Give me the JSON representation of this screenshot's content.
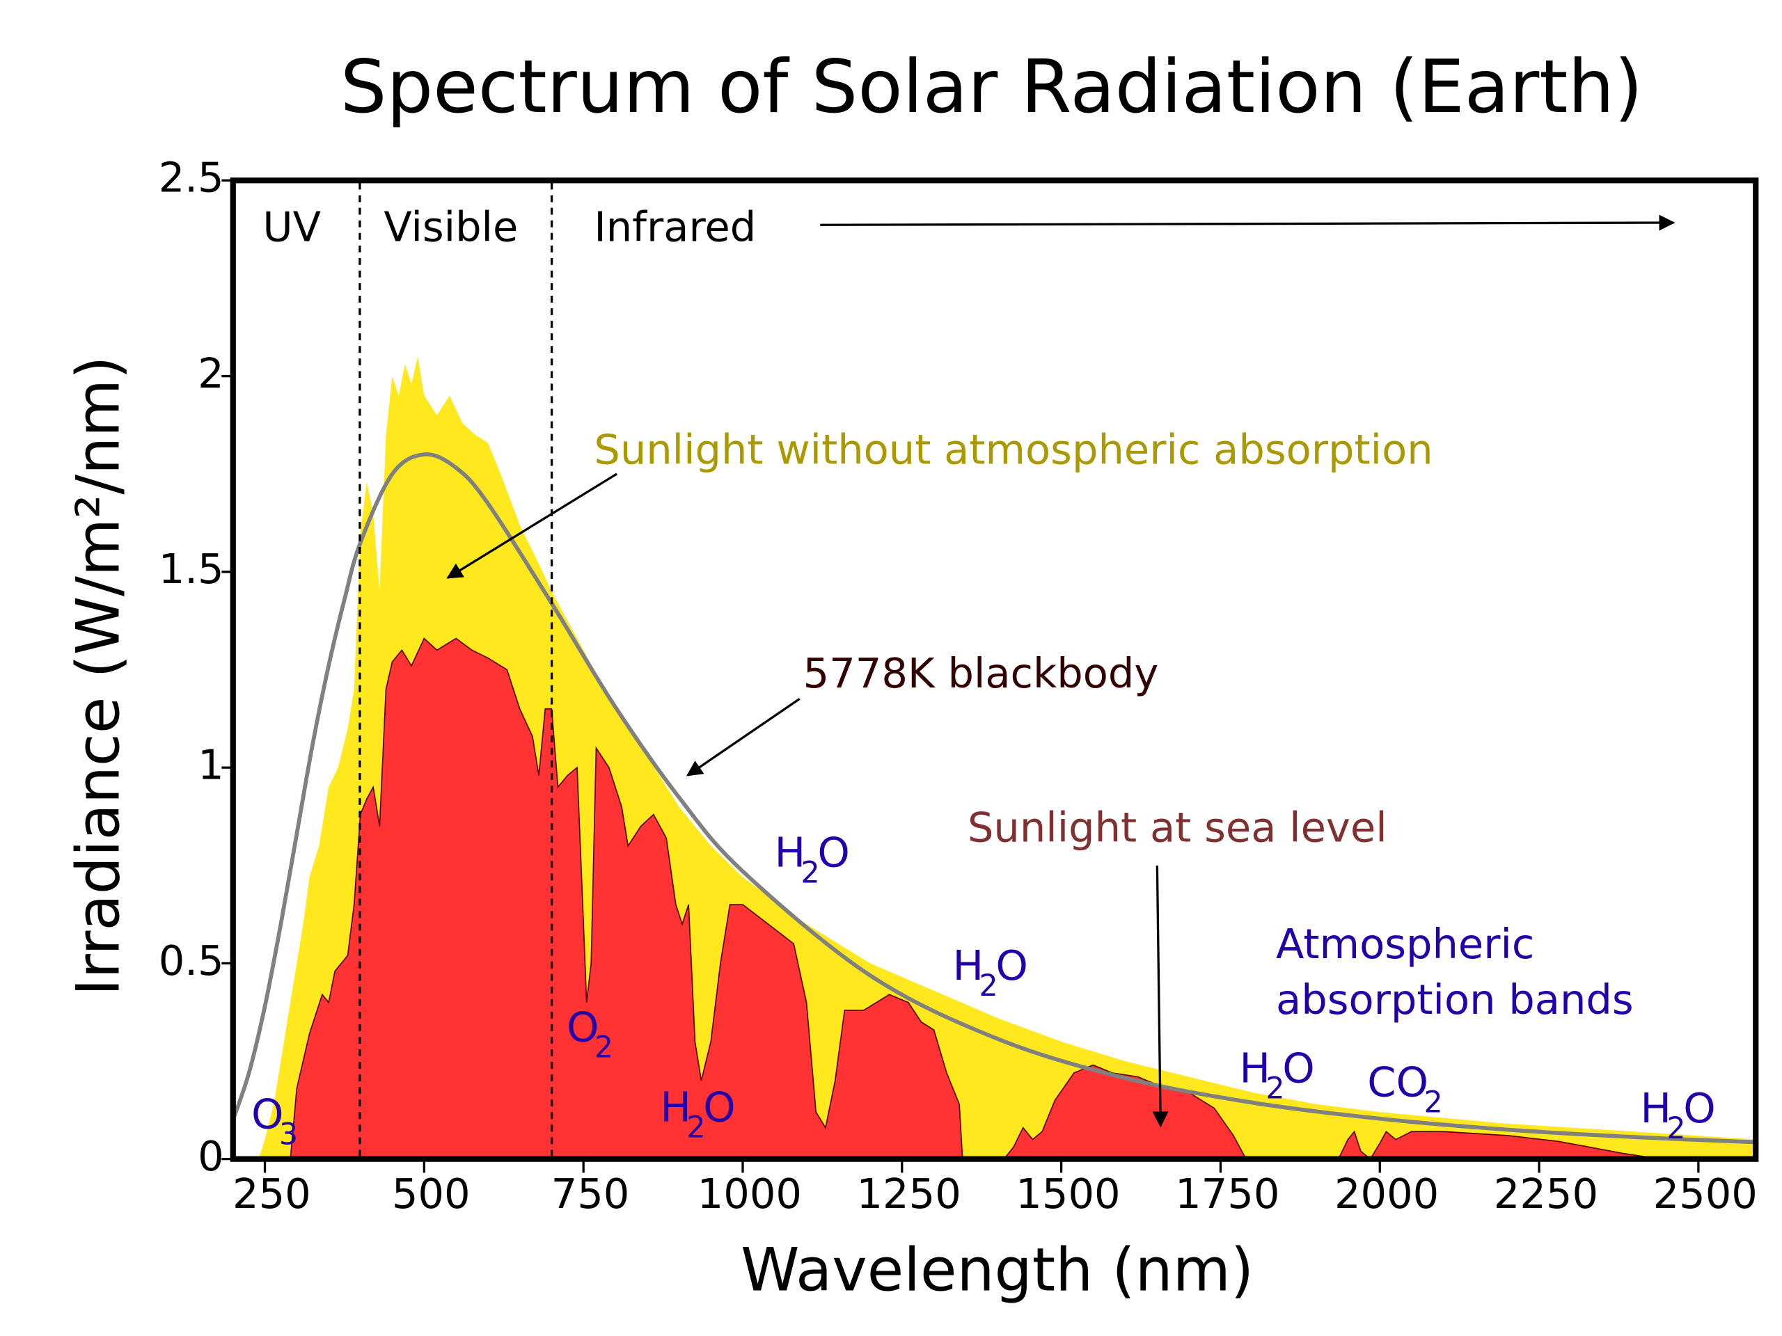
{
  "chart_data": {
    "type": "area",
    "title": "Spectrum of Solar Radiation (Earth)",
    "xlabel": "Wavelength (nm)",
    "ylabel": "Irradiance (W/m²/nm)",
    "xlim": [
      200,
      2590
    ],
    "ylim": [
      0,
      2.5
    ],
    "grid": false,
    "x_ticks": [
      "250",
      "500",
      "750",
      "1000",
      "1250",
      "1500",
      "1750",
      "2000",
      "2250",
      "2500"
    ],
    "x_tick_values": [
      250,
      500,
      750,
      1000,
      1250,
      1500,
      1750,
      2000,
      2250,
      2500
    ],
    "y_ticks": [
      "0",
      "0.5",
      "1",
      "1.5",
      "2",
      "2.5"
    ],
    "y_tick_values": [
      0,
      0.5,
      1,
      1.5,
      2,
      2.5
    ],
    "colors": {
      "extraterrestrial": "#ffe81e",
      "sea_level": "#ff3333",
      "blackbody": "#808080",
      "gas_labels": "#2200aa",
      "sunlight_label": "#aa9900",
      "blackbody_label": "#330000",
      "sea_level_label": "#803030"
    },
    "regions": [
      {
        "label": "UV",
        "to": 400
      },
      {
        "label": "Visible",
        "from": 400,
        "to": 700
      },
      {
        "label": "Infrared",
        "from": 700
      }
    ],
    "series": [
      {
        "name": "Sunlight without atmospheric absorption",
        "points": [
          [
            240,
            0
          ],
          [
            250,
            0.05
          ],
          [
            265,
            0.15
          ],
          [
            280,
            0.3
          ],
          [
            300,
            0.5
          ],
          [
            310,
            0.6
          ],
          [
            320,
            0.72
          ],
          [
            335,
            0.8
          ],
          [
            350,
            0.95
          ],
          [
            365,
            1.0
          ],
          [
            380,
            1.1
          ],
          [
            390,
            1.2
          ],
          [
            400,
            1.6
          ],
          [
            410,
            1.73
          ],
          [
            420,
            1.65
          ],
          [
            430,
            1.45
          ],
          [
            440,
            1.85
          ],
          [
            450,
            2.0
          ],
          [
            460,
            1.95
          ],
          [
            470,
            2.03
          ],
          [
            480,
            1.98
          ],
          [
            490,
            2.05
          ],
          [
            500,
            1.95
          ],
          [
            520,
            1.9
          ],
          [
            540,
            1.95
          ],
          [
            560,
            1.88
          ],
          [
            580,
            1.85
          ],
          [
            600,
            1.83
          ],
          [
            620,
            1.75
          ],
          [
            650,
            1.62
          ],
          [
            680,
            1.52
          ],
          [
            700,
            1.45
          ],
          [
            750,
            1.3
          ],
          [
            800,
            1.15
          ],
          [
            850,
            1.03
          ],
          [
            900,
            0.9
          ],
          [
            950,
            0.8
          ],
          [
            1000,
            0.72
          ],
          [
            1100,
            0.6
          ],
          [
            1200,
            0.5
          ],
          [
            1300,
            0.43
          ],
          [
            1400,
            0.36
          ],
          [
            1500,
            0.3
          ],
          [
            1600,
            0.25
          ],
          [
            1700,
            0.21
          ],
          [
            1800,
            0.17
          ],
          [
            1900,
            0.14
          ],
          [
            2000,
            0.12
          ],
          [
            2200,
            0.09
          ],
          [
            2400,
            0.07
          ],
          [
            2590,
            0.05
          ]
        ]
      },
      {
        "name": "Sunlight at sea level",
        "points": [
          [
            290,
            0
          ],
          [
            300,
            0.18
          ],
          [
            320,
            0.32
          ],
          [
            340,
            0.42
          ],
          [
            350,
            0.4
          ],
          [
            360,
            0.48
          ],
          [
            380,
            0.52
          ],
          [
            390,
            0.65
          ],
          [
            400,
            0.88
          ],
          [
            410,
            0.92
          ],
          [
            420,
            0.95
          ],
          [
            430,
            0.85
          ],
          [
            440,
            1.2
          ],
          [
            450,
            1.27
          ],
          [
            465,
            1.3
          ],
          [
            480,
            1.26
          ],
          [
            500,
            1.33
          ],
          [
            520,
            1.3
          ],
          [
            550,
            1.33
          ],
          [
            575,
            1.3
          ],
          [
            600,
            1.28
          ],
          [
            630,
            1.25
          ],
          [
            650,
            1.15
          ],
          [
            670,
            1.08
          ],
          [
            680,
            0.98
          ],
          [
            690,
            1.15
          ],
          [
            700,
            1.15
          ],
          [
            710,
            0.95
          ],
          [
            725,
            0.98
          ],
          [
            740,
            1.0
          ],
          [
            750,
            0.6
          ],
          [
            755,
            0.4
          ],
          [
            762,
            0.5
          ],
          [
            770,
            1.05
          ],
          [
            790,
            1.0
          ],
          [
            810,
            0.9
          ],
          [
            820,
            0.8
          ],
          [
            840,
            0.85
          ],
          [
            860,
            0.88
          ],
          [
            880,
            0.82
          ],
          [
            895,
            0.65
          ],
          [
            905,
            0.6
          ],
          [
            915,
            0.65
          ],
          [
            925,
            0.3
          ],
          [
            935,
            0.2
          ],
          [
            950,
            0.3
          ],
          [
            965,
            0.5
          ],
          [
            980,
            0.65
          ],
          [
            1000,
            0.65
          ],
          [
            1040,
            0.6
          ],
          [
            1080,
            0.55
          ],
          [
            1100,
            0.4
          ],
          [
            1115,
            0.12
          ],
          [
            1130,
            0.08
          ],
          [
            1145,
            0.2
          ],
          [
            1160,
            0.38
          ],
          [
            1190,
            0.38
          ],
          [
            1230,
            0.42
          ],
          [
            1260,
            0.4
          ],
          [
            1280,
            0.35
          ],
          [
            1300,
            0.33
          ],
          [
            1320,
            0.22
          ],
          [
            1340,
            0.14
          ],
          [
            1345,
            0
          ],
          [
            1410,
            0
          ],
          [
            1425,
            0.03
          ],
          [
            1440,
            0.08
          ],
          [
            1455,
            0.05
          ],
          [
            1470,
            0.07
          ],
          [
            1490,
            0.15
          ],
          [
            1520,
            0.22
          ],
          [
            1550,
            0.24
          ],
          [
            1580,
            0.22
          ],
          [
            1620,
            0.21
          ],
          [
            1650,
            0.19
          ],
          [
            1700,
            0.17
          ],
          [
            1740,
            0.13
          ],
          [
            1770,
            0.06
          ],
          [
            1790,
            0
          ],
          [
            1935,
            0
          ],
          [
            1950,
            0.05
          ],
          [
            1960,
            0.07
          ],
          [
            1970,
            0.02
          ],
          [
            1985,
            0
          ],
          [
            2000,
            0.04
          ],
          [
            2010,
            0.07
          ],
          [
            2025,
            0.05
          ],
          [
            2050,
            0.07
          ],
          [
            2100,
            0.07
          ],
          [
            2200,
            0.06
          ],
          [
            2280,
            0.045
          ],
          [
            2330,
            0.03
          ],
          [
            2380,
            0.015
          ],
          [
            2420,
            0.005
          ],
          [
            2440,
            0
          ]
        ]
      },
      {
        "name": "5778K blackbody",
        "points": [
          [
            200,
            0.1
          ],
          [
            225,
            0.22
          ],
          [
            250,
            0.39
          ],
          [
            275,
            0.6
          ],
          [
            300,
            0.83
          ],
          [
            325,
            1.06
          ],
          [
            350,
            1.26
          ],
          [
            375,
            1.43
          ],
          [
            400,
            1.575
          ],
          [
            450,
            1.75
          ],
          [
            500,
            1.8
          ],
          [
            550,
            1.766
          ],
          [
            600,
            1.675
          ],
          [
            700,
            1.42
          ],
          [
            800,
            1.155
          ],
          [
            900,
            0.924
          ],
          [
            1000,
            0.735
          ],
          [
            1200,
            0.469
          ],
          [
            1400,
            0.307
          ],
          [
            1600,
            0.207
          ],
          [
            1800,
            0.144
          ],
          [
            2000,
            0.103
          ],
          [
            2200,
            0.075
          ],
          [
            2400,
            0.056
          ],
          [
            2590,
            0.043
          ]
        ]
      }
    ],
    "annotations": {
      "sunlight_top": "Sunlight without atmospheric absorption",
      "blackbody": "5778K blackbody",
      "sea_level": "Sunlight at sea level",
      "absorption_line1": "Atmospheric",
      "absorption_line2": "absorption bands"
    },
    "absorption_labels": [
      {
        "main": "O",
        "sub": "3",
        "tail": ""
      },
      {
        "main": "O",
        "sub": "2",
        "tail": ""
      },
      {
        "main": "H",
        "sub": "2",
        "tail": "O"
      },
      {
        "main": "H",
        "sub": "2",
        "tail": "O"
      },
      {
        "main": "H",
        "sub": "2",
        "tail": "O"
      },
      {
        "main": "H",
        "sub": "2",
        "tail": "O"
      },
      {
        "main": "CO",
        "sub": "2",
        "tail": ""
      },
      {
        "main": "H",
        "sub": "2",
        "tail": "O"
      }
    ]
  }
}
